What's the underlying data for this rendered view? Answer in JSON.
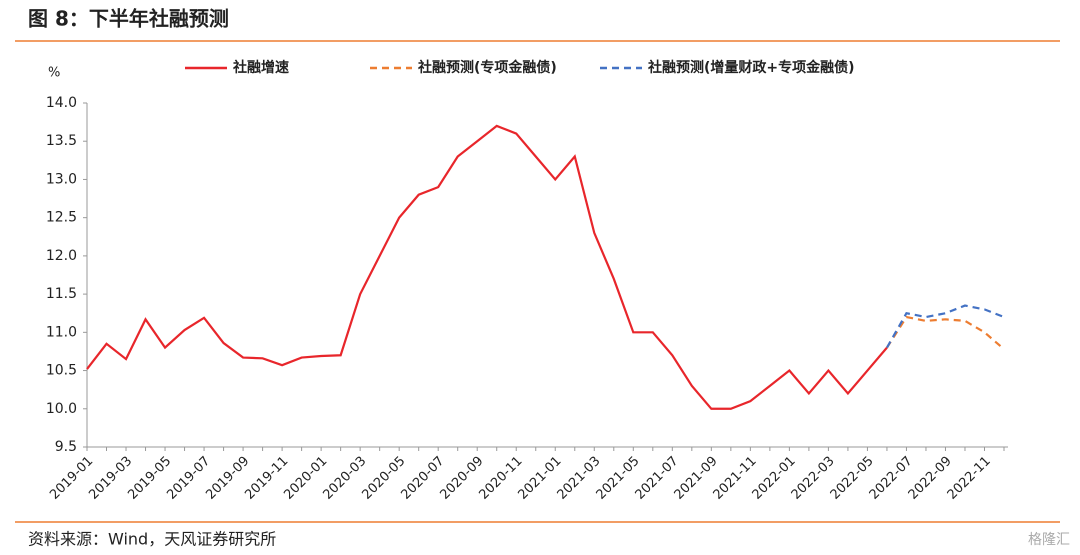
{
  "header": {
    "title": "图 8：下半年社融预测"
  },
  "chart_data": {
    "type": "line",
    "y_label": "%",
    "categories": [
      "2019-01",
      null,
      "2019-03",
      null,
      "2019-05",
      null,
      "2019-07",
      null,
      "2019-09",
      null,
      "2019-11",
      null,
      "2020-01",
      null,
      "2020-03",
      null,
      "2020-05",
      null,
      "2020-07",
      null,
      "2020-09",
      null,
      "2020-11",
      null,
      "2021-01",
      null,
      "2021-03",
      null,
      "2021-05",
      null,
      "2021-07",
      null,
      "2021-09",
      null,
      "2021-11",
      null,
      "2022-01",
      null,
      "2022-03",
      null,
      "2022-05",
      null,
      "2022-07",
      null,
      "2022-09",
      null,
      "2022-11",
      null
    ],
    "series": [
      {
        "name": "社融增速",
        "color": "#e8262b",
        "dash": false,
        "values": [
          10.52,
          10.85,
          10.65,
          11.17,
          10.8,
          11.03,
          11.19,
          10.86,
          10.67,
          10.66,
          10.57,
          10.67,
          10.69,
          10.7,
          11.5,
          12.0,
          12.5,
          12.8,
          12.9,
          13.3,
          13.5,
          13.7,
          13.6,
          13.3,
          13.0,
          13.3,
          12.3,
          11.7,
          11.0,
          11.0,
          10.7,
          10.3,
          10.0,
          10.0,
          10.1,
          10.3,
          10.5,
          10.2,
          10.5,
          10.2,
          10.5,
          10.8,
          null,
          null,
          null,
          null,
          null,
          null
        ]
      },
      {
        "name": "社融预测(专项金融债)",
        "color": "#ed7d31",
        "dash": true,
        "values": [
          null,
          null,
          null,
          null,
          null,
          null,
          null,
          null,
          null,
          null,
          null,
          null,
          null,
          null,
          null,
          null,
          null,
          null,
          null,
          null,
          null,
          null,
          null,
          null,
          null,
          null,
          null,
          null,
          null,
          null,
          null,
          null,
          null,
          null,
          null,
          null,
          null,
          null,
          null,
          null,
          null,
          10.8,
          11.2,
          11.15,
          11.17,
          11.15,
          11.0,
          10.78
        ]
      },
      {
        "name": "社融预测(增量财政+专项金融债)",
        "color": "#4472c4",
        "dash": true,
        "values": [
          null,
          null,
          null,
          null,
          null,
          null,
          null,
          null,
          null,
          null,
          null,
          null,
          null,
          null,
          null,
          null,
          null,
          null,
          null,
          null,
          null,
          null,
          null,
          null,
          null,
          null,
          null,
          null,
          null,
          null,
          null,
          null,
          null,
          null,
          null,
          null,
          null,
          null,
          null,
          null,
          null,
          10.8,
          11.25,
          11.2,
          11.25,
          11.35,
          11.3,
          11.2
        ]
      }
    ],
    "ylim": [
      9.5,
      14.0
    ],
    "yticks": [
      9.5,
      {
        "value": 10,
        "label": "10.0"
      },
      10.5,
      {
        "value": 11,
        "label": "11.0"
      },
      11.5,
      {
        "value": 12,
        "label": "12.0"
      },
      12.5,
      {
        "value": 13,
        "label": "13.0"
      },
      13.5,
      {
        "value": 14,
        "label": "14.0"
      }
    ],
    "grid": false,
    "legend": "top"
  },
  "footer": {
    "source": "资料来源：Wind，天风证券研究所",
    "watermark": "格隆汇"
  }
}
